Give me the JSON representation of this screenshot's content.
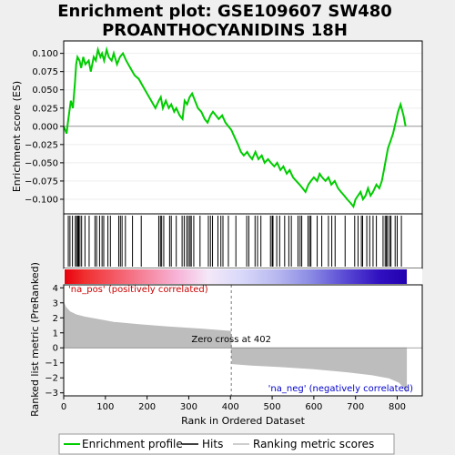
{
  "title_line1": "Enrichment plot: GSE109607 SW480",
  "title_line2": "PROANTHOCYANIDINS 18H",
  "chart_data": {
    "type": "line",
    "top_panel": {
      "ylabel": "Enrichment score (ES)",
      "ylim": [
        -0.12,
        0.117
      ],
      "yticks": [
        0.1,
        0.075,
        0.05,
        0.025,
        0.0,
        -0.025,
        -0.05,
        -0.075,
        -0.1
      ],
      "ytick_labels": [
        "0.100",
        "0.075",
        "0.050",
        "0.025",
        "0.000",
        "−0.025",
        "−0.050",
        "−0.075",
        "−0.100"
      ],
      "series_name": "Enrichment profile",
      "x": [
        0,
        7,
        10,
        17,
        22,
        27,
        30,
        33,
        38,
        42,
        47,
        52,
        60,
        65,
        72,
        77,
        82,
        88,
        92,
        97,
        103,
        108,
        115,
        120,
        128,
        135,
        142,
        150,
        160,
        170,
        180,
        190,
        200,
        210,
        220,
        228,
        233,
        238,
        245,
        252,
        258,
        265,
        270,
        278,
        285,
        290,
        296,
        302,
        308,
        315,
        322,
        330,
        338,
        345,
        352,
        358,
        365,
        372,
        380,
        388,
        395,
        402,
        410,
        418,
        425,
        432,
        440,
        445,
        452,
        460,
        467,
        475,
        482,
        490,
        497,
        505,
        512,
        520,
        527,
        535,
        542,
        550,
        558,
        566,
        573,
        580,
        587,
        593,
        600,
        608,
        614,
        620,
        628,
        635,
        642,
        650,
        658,
        665,
        673,
        680,
        688,
        695,
        700,
        706,
        712,
        718,
        724,
        730,
        736,
        742,
        750,
        757,
        763,
        768,
        773,
        778,
        784,
        790,
        796,
        802,
        808,
        815,
        820
      ],
      "y": [
        0.0,
        -0.01,
        0.005,
        0.035,
        0.025,
        0.06,
        0.085,
        0.095,
        0.09,
        0.08,
        0.095,
        0.085,
        0.09,
        0.075,
        0.095,
        0.09,
        0.105,
        0.095,
        0.1,
        0.09,
        0.105,
        0.095,
        0.09,
        0.1,
        0.085,
        0.095,
        0.1,
        0.09,
        0.08,
        0.07,
        0.065,
        0.055,
        0.045,
        0.035,
        0.025,
        0.035,
        0.04,
        0.025,
        0.035,
        0.025,
        0.03,
        0.02,
        0.025,
        0.015,
        0.01,
        0.035,
        0.03,
        0.04,
        0.045,
        0.035,
        0.025,
        0.02,
        0.01,
        0.005,
        0.015,
        0.02,
        0.015,
        0.01,
        0.015,
        0.005,
        0.0,
        -0.005,
        -0.015,
        -0.025,
        -0.035,
        -0.04,
        -0.035,
        -0.04,
        -0.045,
        -0.035,
        -0.045,
        -0.04,
        -0.05,
        -0.045,
        -0.05,
        -0.055,
        -0.05,
        -0.06,
        -0.055,
        -0.065,
        -0.06,
        -0.07,
        -0.075,
        -0.08,
        -0.085,
        -0.09,
        -0.08,
        -0.075,
        -0.07,
        -0.075,
        -0.065,
        -0.07,
        -0.075,
        -0.07,
        -0.08,
        -0.075,
        -0.085,
        -0.09,
        -0.095,
        -0.1,
        -0.105,
        -0.11,
        -0.1,
        -0.095,
        -0.09,
        -0.1,
        -0.095,
        -0.085,
        -0.095,
        -0.09,
        -0.08,
        -0.085,
        -0.075,
        -0.06,
        -0.045,
        -0.03,
        -0.02,
        -0.01,
        0.005,
        0.02,
        0.03,
        0.015,
        0.0
      ]
    },
    "hits": [
      11,
      15,
      21,
      28,
      31,
      34,
      36,
      39,
      43,
      51,
      61,
      75,
      79,
      86,
      92,
      96,
      106,
      112,
      132,
      136,
      140,
      148,
      165,
      186,
      228,
      232,
      235,
      240,
      254,
      258,
      270,
      284,
      289,
      295,
      299,
      303,
      306,
      312,
      327,
      347,
      352,
      357,
      370,
      377,
      382,
      395,
      413,
      439,
      444,
      459,
      465,
      473,
      496,
      500,
      502,
      511,
      518,
      530,
      540,
      546,
      562,
      567,
      571,
      586,
      590,
      593,
      608,
      619,
      635,
      643,
      651,
      675,
      698,
      706,
      714,
      717,
      727,
      734,
      742,
      750,
      766,
      771,
      774,
      777,
      782,
      785,
      795,
      800,
      810
    ],
    "middle_panel": {
      "pos_label": "'na_pos' (positively correlated)",
      "neg_label": "'na_neg' (negatively correlated)",
      "zero_cross_label": "Zero cross at 402",
      "zero_cross": 402
    },
    "bottom_panel": {
      "ylabel": "Ranked list metric (PreRanked)",
      "ylim": [
        -3.2,
        4.2
      ],
      "yticks": [
        4,
        3,
        2,
        1,
        0,
        -1,
        -2,
        -3
      ],
      "ytick_labels": [
        "4",
        "3",
        "2",
        "1",
        "0",
        "−1",
        "−2",
        "−3"
      ],
      "metric_points": [
        [
          0,
          3.0
        ],
        [
          5,
          2.7
        ],
        [
          15,
          2.4
        ],
        [
          30,
          2.2
        ],
        [
          50,
          2.05
        ],
        [
          80,
          1.9
        ],
        [
          120,
          1.7
        ],
        [
          180,
          1.55
        ],
        [
          250,
          1.4
        ],
        [
          330,
          1.25
        ],
        [
          400,
          1.1
        ],
        [
          402,
          0.0
        ],
        [
          405,
          -1.05
        ],
        [
          450,
          -1.15
        ],
        [
          520,
          -1.25
        ],
        [
          600,
          -1.4
        ],
        [
          680,
          -1.6
        ],
        [
          740,
          -1.8
        ],
        [
          780,
          -2.0
        ],
        [
          805,
          -2.3
        ],
        [
          815,
          -2.6
        ],
        [
          822,
          -2.9
        ]
      ]
    },
    "xlabel": "Rank in Ordered Dataset",
    "xlim": [
      0,
      860
    ],
    "xticks": [
      0,
      100,
      200,
      300,
      400,
      500,
      600,
      700,
      800
    ],
    "xtick_labels": [
      "0",
      "100",
      "200",
      "300",
      "400",
      "500",
      "600",
      "700",
      "800"
    ],
    "n_genes": 823,
    "legend": [
      {
        "label": "Enrichment profile",
        "color": "#00cc00"
      },
      {
        "label": "Hits",
        "color": "#000000"
      },
      {
        "label": "Ranking metric scores",
        "color": "#bdbdbd"
      }
    ],
    "legend_position": "bottom",
    "colors": {
      "profile": "#00cc00",
      "hits": "#000000",
      "metric": "#bdbdbd",
      "pos_text": "#cc0000",
      "neg_text": "#0000cc"
    }
  }
}
